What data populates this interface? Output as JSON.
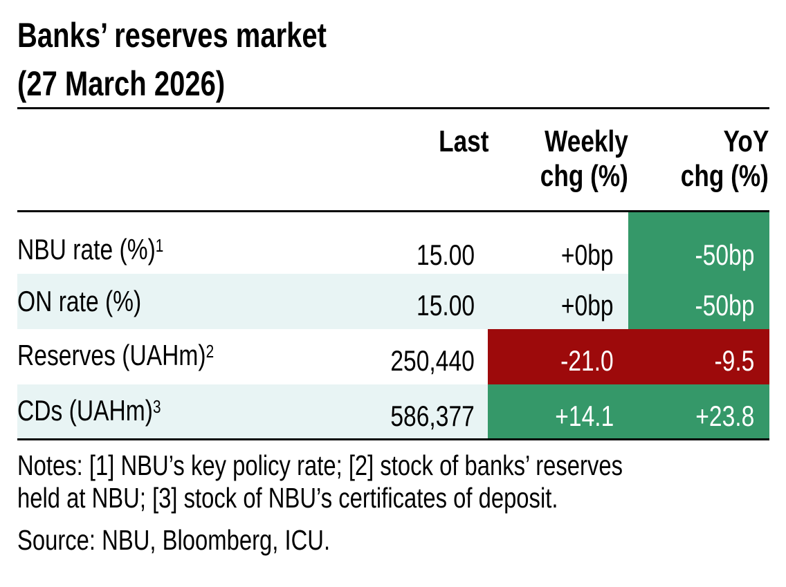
{
  "title": {
    "line1": "Banks’ reserves market",
    "line2": "(27 March 2026)"
  },
  "colors": {
    "green": "#359869",
    "red": "#9D0A0B",
    "band": "#E8F4F4"
  },
  "chart_data": {
    "type": "table",
    "title": "Banks’ reserves market (27 March 2026)",
    "columns": [
      "",
      "Last",
      "Weekly chg (%)",
      "YoY chg (%)"
    ],
    "header": {
      "last": "Last",
      "weekly1": "Weekly",
      "weekly2": "chg (%)",
      "yoy1": "YoY",
      "yoy2": "chg (%)"
    },
    "rows": [
      {
        "label": "NBU rate (%)",
        "sup": "1",
        "last": "15.00",
        "weekly": "+0bp",
        "yoy": "-50bp"
      },
      {
        "label": "ON rate (%)",
        "sup": "",
        "last": "15.00",
        "weekly": "+0bp",
        "yoy": "-50bp"
      },
      {
        "label": "Reserves (UAHm)",
        "sup": "2",
        "last": "250,440",
        "weekly": "-21.0",
        "yoy": "-9.5"
      },
      {
        "label": "CDs (UAHm)",
        "sup": "3",
        "last": "586,377",
        "weekly": "+14.1",
        "yoy": "+23.8"
      }
    ]
  },
  "notes": {
    "line1": "Notes: [1] NBU’s key policy rate; [2] stock of banks’ reserves",
    "line2": "held at NBU; [3] stock of NBU’s certificates of deposit.",
    "source": "Source: NBU, Bloomberg, ICU."
  }
}
